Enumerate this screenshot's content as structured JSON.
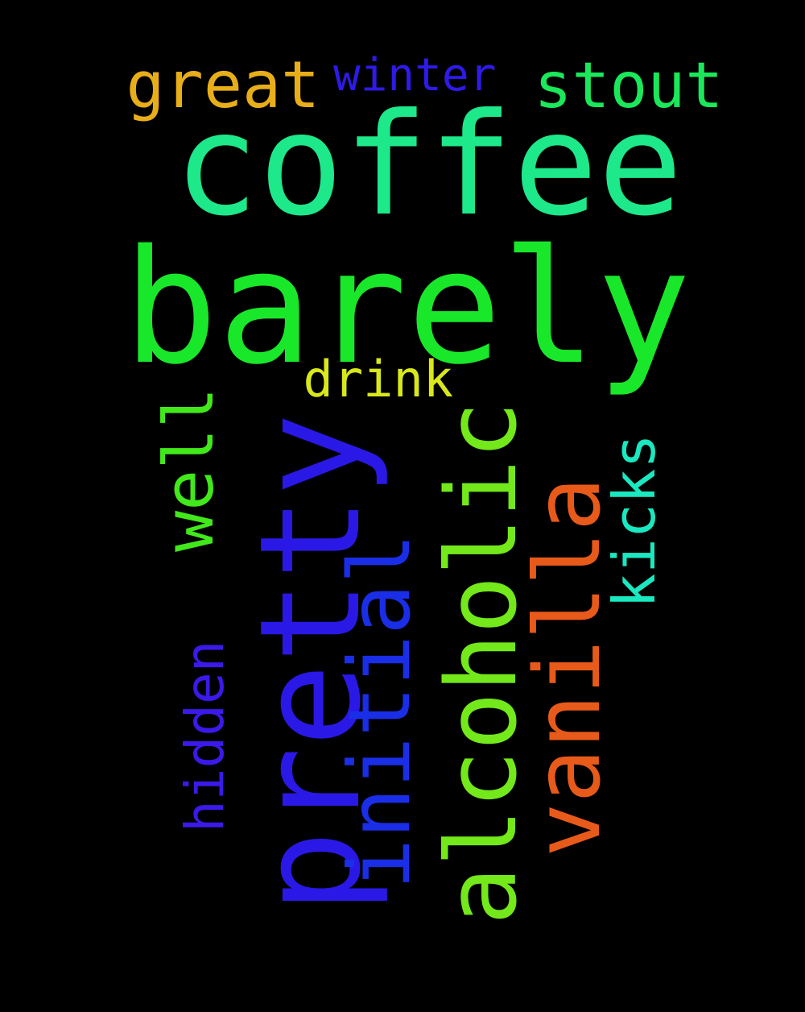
{
  "background": "#000000",
  "words": [
    {
      "text": "coffee",
      "color": "#1de88a",
      "orientation": "horizontal"
    },
    {
      "text": "barely",
      "color": "#19e82a",
      "orientation": "horizontal"
    },
    {
      "text": "pretty",
      "color": "#2a19e6",
      "orientation": "vertical"
    },
    {
      "text": "alcoholic",
      "color": "#73e81a",
      "orientation": "vertical"
    },
    {
      "text": "vanilla",
      "color": "#e85a1a",
      "orientation": "vertical"
    },
    {
      "text": "initial",
      "color": "#1a2ee8",
      "orientation": "vertical"
    },
    {
      "text": "well",
      "color": "#41e81a",
      "orientation": "vertical"
    },
    {
      "text": "great",
      "color": "#e8ae1a",
      "orientation": "horizontal"
    },
    {
      "text": "stout",
      "color": "#1ae85a",
      "orientation": "horizontal"
    },
    {
      "text": "winter",
      "color": "#2f1ae8",
      "orientation": "horizontal"
    },
    {
      "text": "drink",
      "color": "#d8e81a",
      "orientation": "horizontal"
    },
    {
      "text": "kicks",
      "color": "#1ae8c0",
      "orientation": "vertical"
    },
    {
      "text": "hidden",
      "color": "#3a1ae8",
      "orientation": "vertical"
    }
  ]
}
